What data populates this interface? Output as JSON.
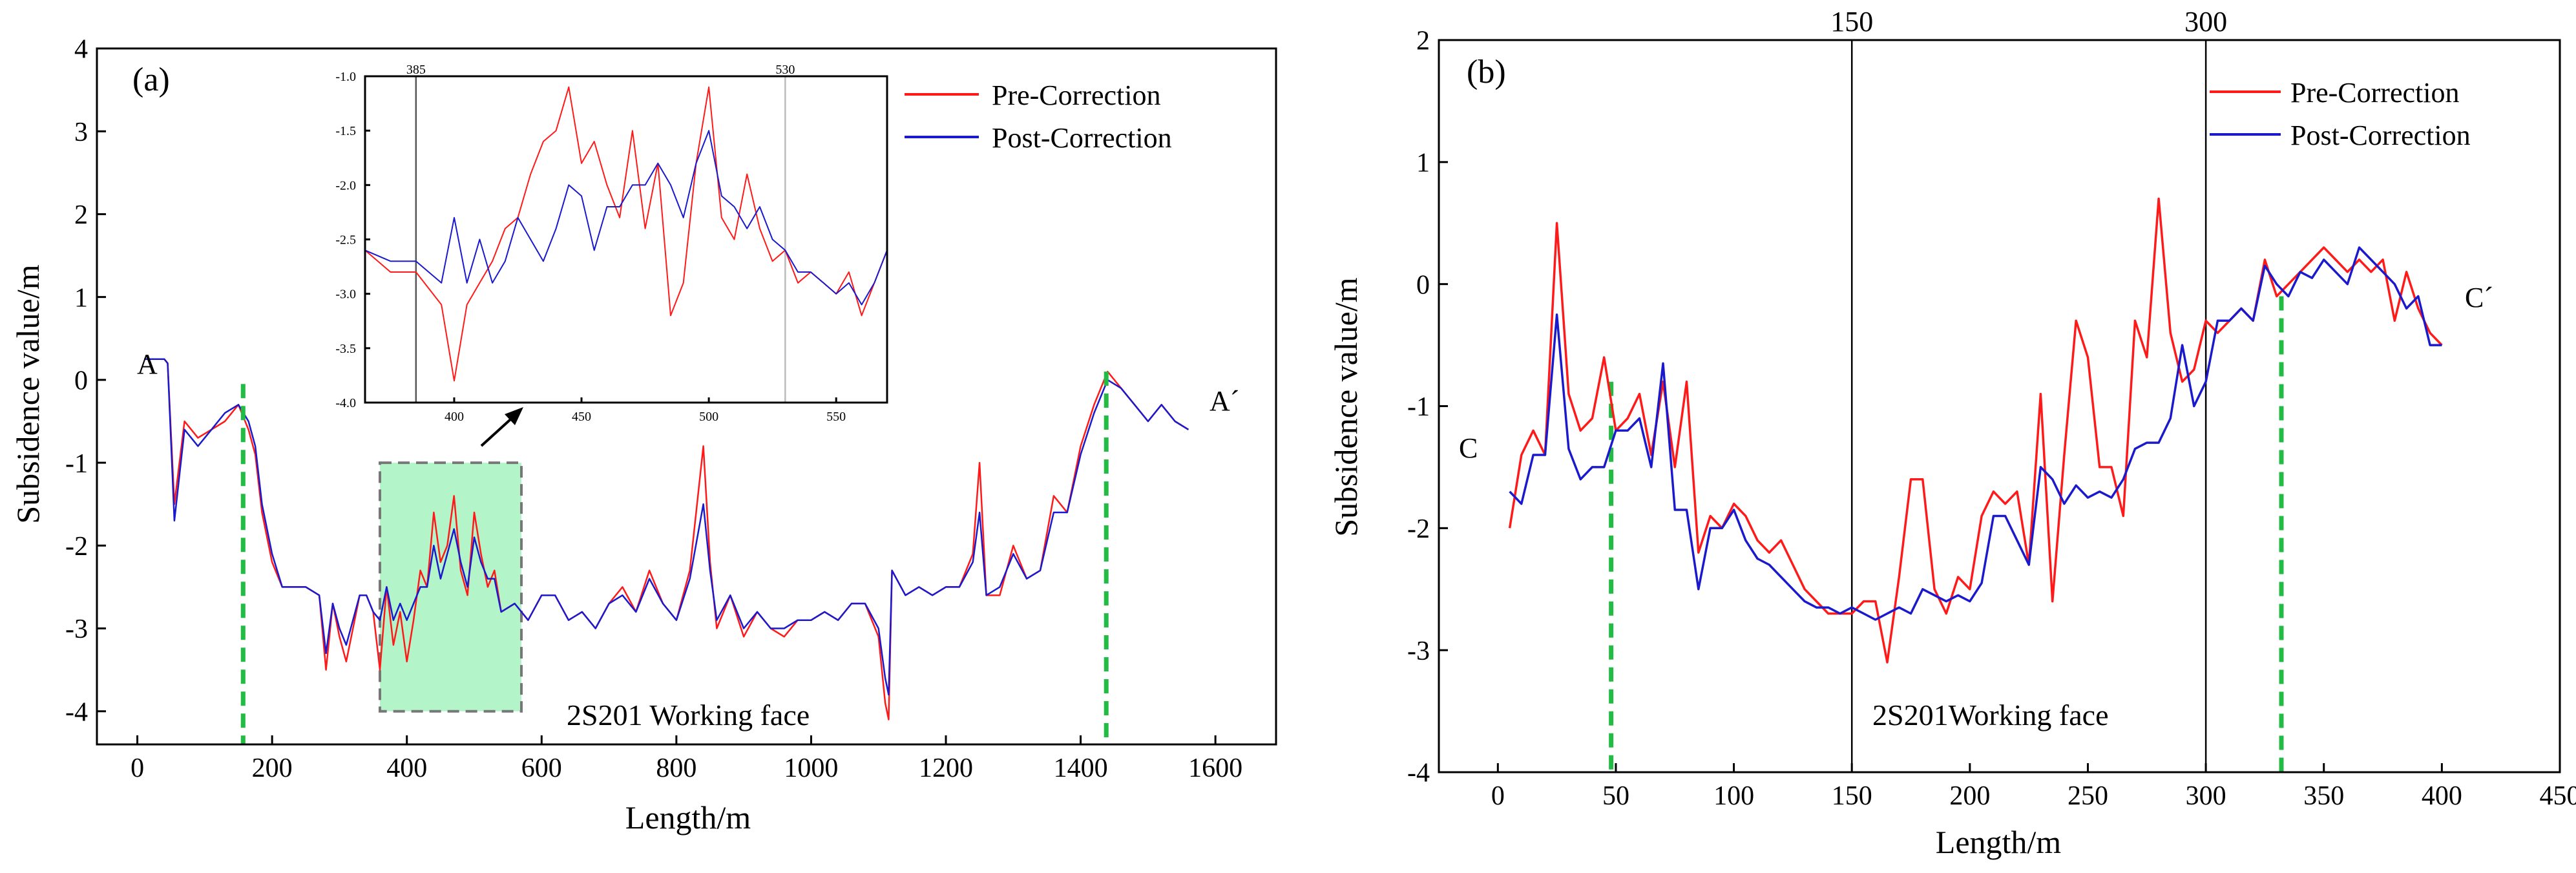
{
  "panel_a": {
    "label": "(a)",
    "end_labels": [
      "A",
      "A´"
    ],
    "region_label": "2S201 Working face",
    "legend": {
      "pre": "Pre-Correction",
      "post": "Post-Correction"
    },
    "colors": {
      "pre": "#ff1a1a",
      "post": "#1a1acc",
      "marker": "#22bb44",
      "highlight": "#b3f5c8"
    }
  },
  "panel_b": {
    "label": "(b)",
    "end_labels": [
      "C",
      "C´"
    ],
    "region_label": "2S201Working face",
    "top_labels": [
      "150",
      "300"
    ],
    "legend": {
      "pre": "Pre-Correction",
      "post": "Post-Correction"
    },
    "colors": {
      "pre": "#ff1a1a",
      "post": "#1a1acc",
      "marker": "#22bb44"
    }
  },
  "chart_data": [
    {
      "id": "a",
      "type": "line",
      "title": "(a)",
      "xlabel": "Length/m",
      "ylabel": "Subsidence value/m",
      "xlim": [
        -60,
        1690
      ],
      "ylim": [
        -4.4,
        4
      ],
      "xticks": [
        0,
        200,
        400,
        600,
        800,
        1000,
        1200,
        1400,
        1600
      ],
      "yticks": [
        -4,
        -3,
        -2,
        -1,
        0,
        1,
        2,
        3,
        4
      ],
      "legend": [
        "Pre-Correction",
        "Post-Correction"
      ],
      "legend_position": "top-right",
      "annotations": [
        "A",
        "A´",
        "2S201 Working face"
      ],
      "boundary_x": [
        157,
        1438
      ],
      "highlight_box": {
        "x": [
          360,
          570
        ],
        "y": [
          -4,
          -1
        ]
      },
      "series": [
        {
          "name": "Pre-Correction",
          "x": [
            10,
            30,
            40,
            45,
            55,
            70,
            90,
            110,
            130,
            150,
            165,
            175,
            185,
            200,
            215,
            230,
            250,
            270,
            280,
            290,
            300,
            310,
            320,
            330,
            340,
            350,
            360,
            370,
            380,
            390,
            400,
            410,
            420,
            430,
            440,
            450,
            460,
            470,
            480,
            490,
            500,
            510,
            520,
            530,
            540,
            560,
            580,
            600,
            620,
            640,
            660,
            680,
            700,
            720,
            740,
            760,
            780,
            800,
            820,
            840,
            850,
            860,
            880,
            900,
            920,
            940,
            960,
            980,
            1000,
            1020,
            1040,
            1060,
            1080,
            1100,
            1110,
            1115,
            1120,
            1140,
            1160,
            1180,
            1200,
            1220,
            1240,
            1250,
            1260,
            1280,
            1300,
            1320,
            1340,
            1360,
            1380,
            1400,
            1420,
            1440,
            1460,
            1480,
            1500,
            1520,
            1540,
            1560
          ],
          "values": [
            0.25,
            0.25,
            0.25,
            0.2,
            -1.5,
            -0.5,
            -0.7,
            -0.6,
            -0.5,
            -0.3,
            -0.6,
            -0.9,
            -1.6,
            -2.2,
            -2.5,
            -2.5,
            -2.5,
            -2.6,
            -3.5,
            -2.7,
            -3.1,
            -3.4,
            -3.0,
            -2.6,
            -2.6,
            -2.8,
            -3.5,
            -2.5,
            -3.2,
            -2.8,
            -3.4,
            -2.9,
            -2.3,
            -2.5,
            -1.6,
            -2.2,
            -2.0,
            -1.4,
            -2.3,
            -2.6,
            -1.6,
            -2.1,
            -2.5,
            -2.3,
            -2.8,
            -2.7,
            -2.9,
            -2.6,
            -2.6,
            -2.9,
            -2.8,
            -3.0,
            -2.7,
            -2.5,
            -2.8,
            -2.3,
            -2.7,
            -2.9,
            -2.3,
            -0.8,
            -2.2,
            -3.0,
            -2.6,
            -3.1,
            -2.8,
            -3.0,
            -3.1,
            -2.9,
            -2.9,
            -2.8,
            -2.9,
            -2.7,
            -2.7,
            -3.1,
            -3.9,
            -4.1,
            -2.3,
            -2.6,
            -2.5,
            -2.6,
            -2.5,
            -2.5,
            -2.1,
            -1.0,
            -2.6,
            -2.6,
            -2.0,
            -2.4,
            -2.3,
            -1.4,
            -1.6,
            -0.8,
            -0.3,
            0.1,
            -0.1,
            -0.3,
            -0.5,
            -0.3,
            -0.5,
            -0.6
          ]
        },
        {
          "name": "Post-Correction",
          "x": [
            10,
            30,
            40,
            45,
            55,
            70,
            90,
            110,
            130,
            150,
            165,
            175,
            185,
            200,
            215,
            230,
            250,
            270,
            280,
            290,
            300,
            310,
            320,
            330,
            340,
            350,
            360,
            370,
            380,
            390,
            400,
            410,
            420,
            430,
            440,
            450,
            460,
            470,
            480,
            490,
            500,
            510,
            520,
            530,
            540,
            560,
            580,
            600,
            620,
            640,
            660,
            680,
            700,
            720,
            740,
            760,
            780,
            800,
            820,
            840,
            850,
            860,
            880,
            900,
            920,
            940,
            960,
            980,
            1000,
            1020,
            1040,
            1060,
            1080,
            1100,
            1110,
            1115,
            1120,
            1140,
            1160,
            1180,
            1200,
            1220,
            1240,
            1250,
            1260,
            1280,
            1300,
            1320,
            1340,
            1360,
            1380,
            1400,
            1420,
            1440,
            1460,
            1480,
            1500,
            1520,
            1540,
            1560
          ],
          "values": [
            0.25,
            0.25,
            0.25,
            0.2,
            -1.7,
            -0.6,
            -0.8,
            -0.6,
            -0.4,
            -0.3,
            -0.5,
            -0.8,
            -1.5,
            -2.1,
            -2.5,
            -2.5,
            -2.5,
            -2.6,
            -3.3,
            -2.7,
            -3.0,
            -3.2,
            -2.9,
            -2.6,
            -2.6,
            -2.8,
            -2.9,
            -2.5,
            -2.9,
            -2.7,
            -2.9,
            -2.7,
            -2.5,
            -2.5,
            -2.0,
            -2.4,
            -2.1,
            -1.8,
            -2.2,
            -2.5,
            -1.9,
            -2.2,
            -2.4,
            -2.4,
            -2.8,
            -2.7,
            -2.9,
            -2.6,
            -2.6,
            -2.9,
            -2.8,
            -3.0,
            -2.7,
            -2.6,
            -2.8,
            -2.4,
            -2.7,
            -2.9,
            -2.4,
            -1.5,
            -2.3,
            -2.9,
            -2.6,
            -3.0,
            -2.8,
            -3.0,
            -3.0,
            -2.9,
            -2.9,
            -2.8,
            -2.9,
            -2.7,
            -2.7,
            -3.0,
            -3.6,
            -3.8,
            -2.3,
            -2.6,
            -2.5,
            -2.6,
            -2.5,
            -2.5,
            -2.2,
            -1.6,
            -2.6,
            -2.5,
            -2.1,
            -2.4,
            -2.3,
            -1.6,
            -1.6,
            -0.9,
            -0.4,
            0.0,
            -0.1,
            -0.3,
            -0.5,
            -0.3,
            -0.5,
            -0.6
          ]
        }
      ]
    },
    {
      "id": "a-inset",
      "type": "line",
      "xlim": [
        365,
        570
      ],
      "ylim": [
        -4,
        -1
      ],
      "xticks": [
        400,
        450,
        500,
        550
      ],
      "yticks": [
        -1.0,
        -1.5,
        -2.0,
        -2.5,
        -3.0,
        -3.5,
        -4.0
      ],
      "reference_lines": [
        385,
        530
      ],
      "series": [
        {
          "name": "Pre-Correction",
          "x": [
            365,
            375,
            385,
            395,
            400,
            405,
            410,
            415,
            420,
            425,
            430,
            435,
            440,
            445,
            450,
            455,
            460,
            465,
            470,
            475,
            480,
            485,
            490,
            495,
            500,
            505,
            510,
            515,
            520,
            525,
            530,
            535,
            540,
            545,
            550,
            555,
            560,
            565,
            570
          ],
          "values": [
            -2.6,
            -2.8,
            -2.8,
            -3.1,
            -3.8,
            -3.1,
            -2.9,
            -2.7,
            -2.4,
            -2.3,
            -1.9,
            -1.6,
            -1.5,
            -1.1,
            -1.8,
            -1.6,
            -2.0,
            -2.3,
            -1.5,
            -2.4,
            -1.8,
            -3.2,
            -2.9,
            -1.8,
            -1.1,
            -2.3,
            -2.5,
            -1.9,
            -2.4,
            -2.7,
            -2.6,
            -2.9,
            -2.8,
            -2.9,
            -3.0,
            -2.8,
            -3.2,
            -2.9,
            -2.6
          ]
        },
        {
          "name": "Post-Correction",
          "x": [
            365,
            375,
            385,
            395,
            400,
            405,
            410,
            415,
            420,
            425,
            430,
            435,
            440,
            445,
            450,
            455,
            460,
            465,
            470,
            475,
            480,
            485,
            490,
            495,
            500,
            505,
            510,
            515,
            520,
            525,
            530,
            535,
            540,
            545,
            550,
            555,
            560,
            565,
            570
          ],
          "values": [
            -2.6,
            -2.7,
            -2.7,
            -2.9,
            -2.3,
            -2.9,
            -2.5,
            -2.9,
            -2.7,
            -2.3,
            -2.5,
            -2.7,
            -2.4,
            -2.0,
            -2.1,
            -2.6,
            -2.2,
            -2.2,
            -2.0,
            -2.0,
            -1.8,
            -2.0,
            -2.3,
            -1.8,
            -1.5,
            -2.1,
            -2.2,
            -2.4,
            -2.2,
            -2.5,
            -2.6,
            -2.8,
            -2.8,
            -2.9,
            -3.0,
            -2.9,
            -3.1,
            -2.9,
            -2.6
          ]
        }
      ]
    },
    {
      "id": "b",
      "type": "line",
      "title": "(b)",
      "xlabel": "Length/m",
      "ylabel": "Subsidence value/m",
      "xlim": [
        -25,
        450
      ],
      "ylim": [
        -4,
        2
      ],
      "xticks": [
        0,
        50,
        100,
        150,
        200,
        250,
        300,
        350,
        400,
        450
      ],
      "yticks": [
        -4,
        -3,
        -2,
        -1,
        0,
        1,
        2
      ],
      "legend": [
        "Pre-Correction",
        "Post-Correction"
      ],
      "legend_position": "top-right",
      "annotations": [
        "C",
        "C´",
        "2S201Working face"
      ],
      "reference_lines": [
        150,
        300
      ],
      "boundary_x": [
        48,
        332
      ],
      "series": [
        {
          "name": "Pre-Correction",
          "x": [
            5,
            10,
            15,
            20,
            25,
            30,
            35,
            40,
            45,
            50,
            55,
            60,
            65,
            70,
            75,
            80,
            85,
            90,
            95,
            100,
            105,
            110,
            115,
            120,
            125,
            130,
            135,
            140,
            145,
            150,
            155,
            160,
            165,
            170,
            175,
            180,
            185,
            190,
            195,
            200,
            205,
            210,
            215,
            220,
            225,
            230,
            235,
            240,
            245,
            250,
            255,
            260,
            265,
            270,
            275,
            280,
            285,
            290,
            295,
            300,
            305,
            310,
            315,
            320,
            325,
            330,
            335,
            340,
            345,
            350,
            355,
            360,
            365,
            370,
            375,
            380,
            385,
            390,
            395,
            400
          ],
          "values": [
            -2.0,
            -1.4,
            -1.2,
            -1.4,
            0.5,
            -0.9,
            -1.2,
            -1.1,
            -0.6,
            -1.2,
            -1.1,
            -0.9,
            -1.4,
            -0.8,
            -1.5,
            -0.8,
            -2.2,
            -1.9,
            -2.0,
            -1.8,
            -1.9,
            -2.1,
            -2.2,
            -2.1,
            -2.3,
            -2.5,
            -2.6,
            -2.7,
            -2.7,
            -2.7,
            -2.6,
            -2.6,
            -3.1,
            -2.4,
            -1.6,
            -1.6,
            -2.5,
            -2.7,
            -2.4,
            -2.5,
            -1.9,
            -1.7,
            -1.8,
            -1.7,
            -2.3,
            -0.9,
            -2.6,
            -1.4,
            -0.3,
            -0.6,
            -1.5,
            -1.5,
            -1.9,
            -0.3,
            -0.6,
            0.7,
            -0.4,
            -0.8,
            -0.7,
            -0.3,
            -0.4,
            -0.3,
            -0.2,
            -0.3,
            0.2,
            -0.1,
            0.0,
            0.1,
            0.2,
            0.3,
            0.2,
            0.1,
            0.2,
            0.1,
            0.2,
            -0.3,
            0.1,
            -0.2,
            -0.4,
            -0.5
          ]
        },
        {
          "name": "Post-Correction",
          "x": [
            5,
            10,
            15,
            20,
            25,
            30,
            35,
            40,
            45,
            50,
            55,
            60,
            65,
            70,
            75,
            80,
            85,
            90,
            95,
            100,
            105,
            110,
            115,
            120,
            125,
            130,
            135,
            140,
            145,
            150,
            155,
            160,
            165,
            170,
            175,
            180,
            185,
            190,
            195,
            200,
            205,
            210,
            215,
            220,
            225,
            230,
            235,
            240,
            245,
            250,
            255,
            260,
            265,
            270,
            275,
            280,
            285,
            290,
            295,
            300,
            305,
            310,
            315,
            320,
            325,
            330,
            335,
            340,
            345,
            350,
            355,
            360,
            365,
            370,
            375,
            380,
            385,
            390,
            395,
            400
          ],
          "values": [
            -1.7,
            -1.8,
            -1.4,
            -1.4,
            -0.25,
            -1.35,
            -1.6,
            -1.5,
            -1.5,
            -1.2,
            -1.2,
            -1.1,
            -1.5,
            -0.65,
            -1.85,
            -1.85,
            -2.5,
            -2.0,
            -2.0,
            -1.85,
            -2.1,
            -2.25,
            -2.3,
            -2.4,
            -2.5,
            -2.6,
            -2.65,
            -2.65,
            -2.7,
            -2.65,
            -2.7,
            -2.75,
            -2.7,
            -2.65,
            -2.7,
            -2.5,
            -2.55,
            -2.6,
            -2.55,
            -2.6,
            -2.45,
            -1.9,
            -1.9,
            -2.1,
            -2.3,
            -1.5,
            -1.6,
            -1.8,
            -1.65,
            -1.75,
            -1.7,
            -1.75,
            -1.6,
            -1.35,
            -1.3,
            -1.3,
            -1.1,
            -0.5,
            -1.0,
            -0.8,
            -0.3,
            -0.3,
            -0.2,
            -0.3,
            0.15,
            0.0,
            -0.1,
            0.1,
            0.05,
            0.2,
            0.1,
            0.0,
            0.3,
            0.2,
            0.1,
            0.0,
            -0.2,
            -0.1,
            -0.5,
            -0.5
          ]
        }
      ]
    }
  ]
}
